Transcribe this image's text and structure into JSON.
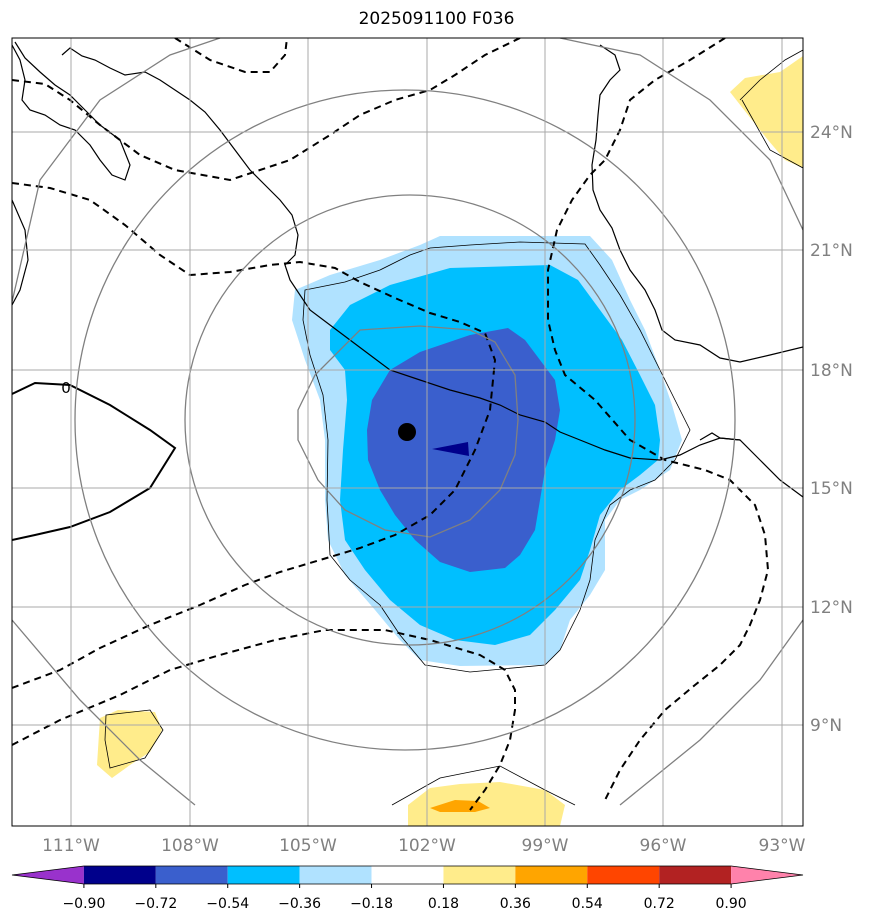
{
  "title": "2025091100 F036",
  "gridlines": {
    "longitudes": [
      "111°W",
      "108°W",
      "105°W",
      "102°W",
      "99°W",
      "96°W",
      "93°W"
    ],
    "latitudes": [
      "24°N",
      "21°N",
      "18°N",
      "15°N",
      "12°N",
      "9°N"
    ]
  },
  "contour_label": "0",
  "colorbar": {
    "tick_labels": [
      "−0.90",
      "−0.72",
      "−0.54",
      "−0.36",
      "−0.18",
      "0.18",
      "0.36",
      "0.54",
      "0.72",
      "0.90"
    ],
    "colors": [
      "#9932cc",
      "#00008b",
      "#3a5fcd",
      "#00bfff",
      "#b0e2ff",
      "#ffffff",
      "#ffec8b",
      "#ffa500",
      "#ff4500",
      "#b22222",
      "#ff82ab"
    ]
  },
  "fill_colors": {
    "light_blue": "#b0e2ff",
    "deep_sky": "#00bfff",
    "royal_blue": "#3a5fcd",
    "navy": "#00008b",
    "yellow": "#ffec8b",
    "orange": "#ffa500"
  }
}
